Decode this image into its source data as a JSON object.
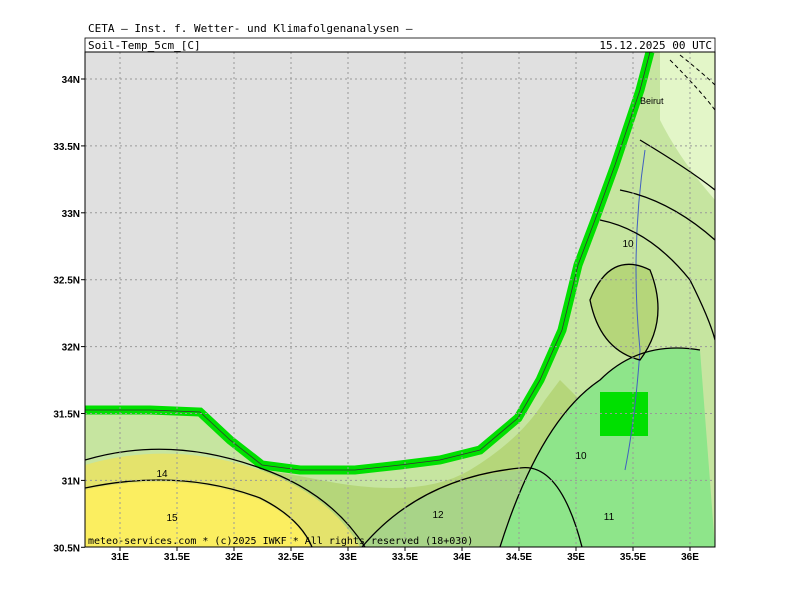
{
  "header": {
    "institute": "CETA – Inst. f. Wetter- und Klimafolgenanalysen –",
    "field": "Soil-Temp_5cm_[C]",
    "valid_time": "15.12.2025 00 UTC"
  },
  "map": {
    "lon_labels": [
      "31E",
      "31.5E",
      "32E",
      "32.5E",
      "33E",
      "33.5E",
      "34E",
      "34.5E",
      "35E",
      "35.5E",
      "36E"
    ],
    "lat_labels": [
      "34N",
      "33.5N",
      "33N",
      "32.5N",
      "32N",
      "31.5N",
      "31N",
      "30.5N"
    ],
    "contour_labels": [
      "10",
      "10",
      "11",
      "12",
      "14",
      "15"
    ],
    "places": [
      "Beirut"
    ]
  },
  "footer": "meteo-services.com * (c)2025 IWKF * All rights reserved (18+030)"
}
